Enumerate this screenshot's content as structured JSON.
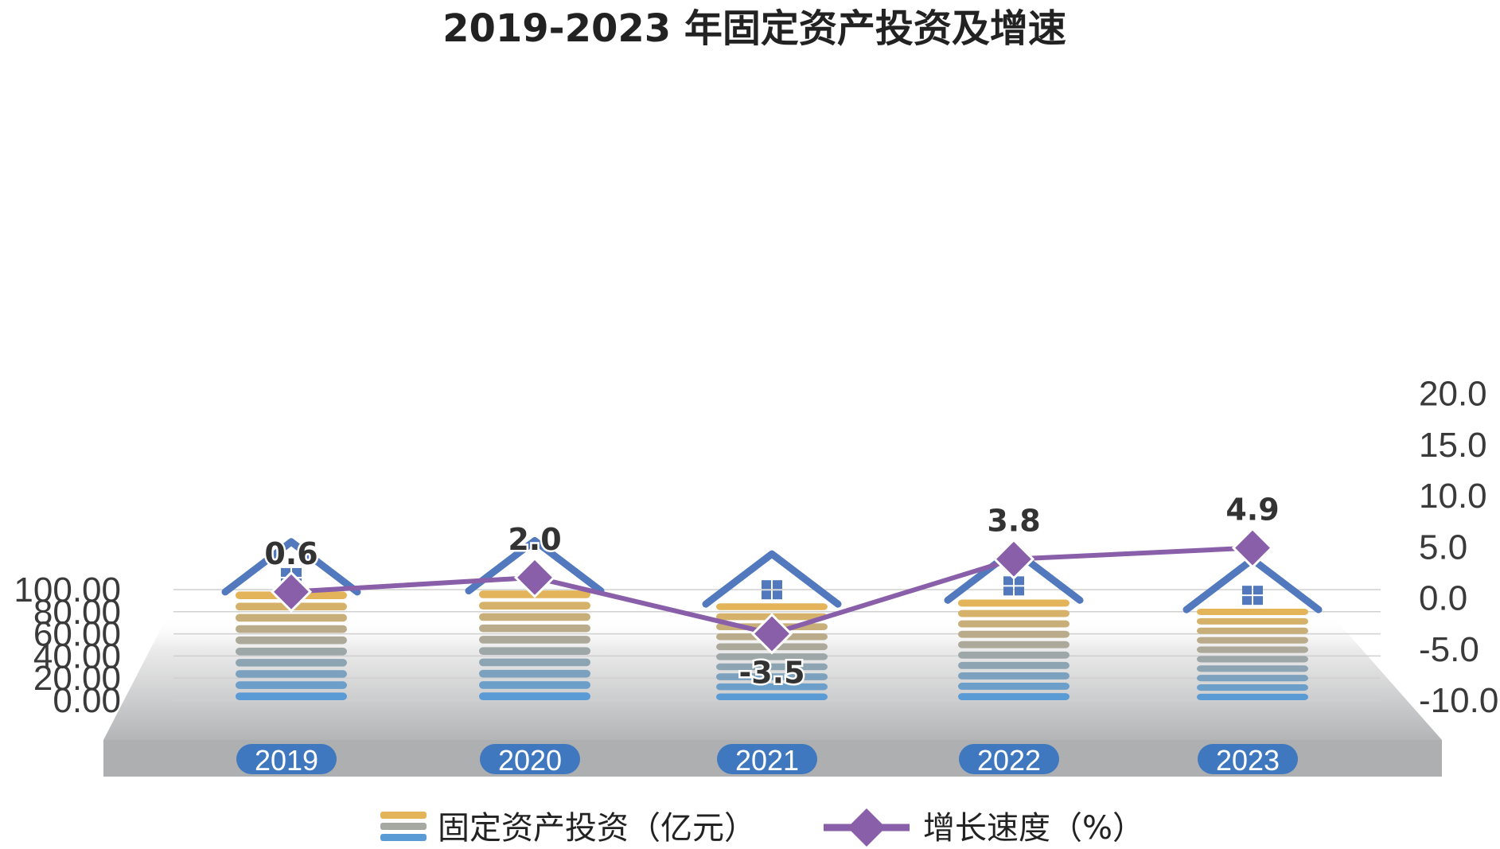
{
  "chart_data": {
    "type": "bar",
    "title": "2019-2023 年固定资产投资及增速",
    "categories": [
      "2019",
      "2020",
      "2021",
      "2022",
      "2023"
    ],
    "series": [
      {
        "name": "固定资产投资（亿元）",
        "type": "bar",
        "axis": "left",
        "values": [
          101.5,
          102.5,
          90.5,
          94.0,
          85.5
        ]
      },
      {
        "name": "增长速度（%）",
        "type": "line",
        "axis": "right",
        "values": [
          0.6,
          2.0,
          -3.5,
          3.8,
          4.9
        ],
        "data_labels": [
          "0.6",
          "2.0",
          "-3.5",
          "3.8",
          "4.9"
        ]
      }
    ],
    "y_left": {
      "ylim": [
        0,
        100
      ],
      "ticks": [
        "0.00",
        "20.00",
        "40.00",
        "60.00",
        "80.00",
        "100.00"
      ]
    },
    "y_right": {
      "ylim": [
        -10,
        20
      ],
      "ticks": [
        "-10.0",
        "-5.0",
        "0.0",
        "5.0",
        "10.0",
        "15.0",
        "20.0"
      ]
    },
    "grid": true,
    "legend_position": "bottom",
    "colors": {
      "bar_top": "#E3B45A",
      "bar_mid": "#A6A8A2",
      "bar_bottom": "#5B9BD5",
      "roof": "#5279BE",
      "line": "#8A5FAA",
      "year_pill": "#3F78BE",
      "grid": "#d0d0d0"
    }
  }
}
